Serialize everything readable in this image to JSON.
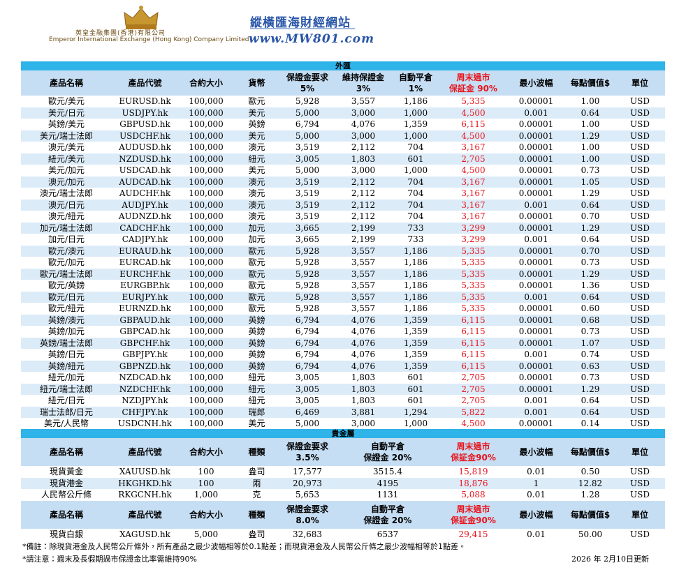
{
  "header": {
    "company_zh": "英皇金融集團(香港)有限公司",
    "company_en": "Emperor International Exchange (Hong Kong) Company Limited",
    "site_name": "縱橫匯海財經網站",
    "site_url": "www.MW801.com"
  },
  "forex": {
    "section_title": "外匯",
    "columns": [
      [
        "產品名稱"
      ],
      [
        "產品代號"
      ],
      [
        "合約大小"
      ],
      [
        "貨幣"
      ],
      [
        "保證金要求",
        "5%"
      ],
      [
        "維持保證金",
        "3%"
      ],
      [
        "自動平倉",
        "1%"
      ],
      [
        "周末過市",
        "保証金 90%"
      ],
      [
        "最小波幅"
      ],
      [
        "每點價值$"
      ],
      [
        "單位"
      ]
    ],
    "rows": [
      [
        "歐元/美元",
        "EURUSD.hk",
        "100,000",
        "歐元",
        "5,928",
        "3,557",
        "1,186",
        "5,335",
        "0.00001",
        "1.00",
        "USD"
      ],
      [
        "美元/日元",
        "USDJPY.hk",
        "100,000",
        "美元",
        "5,000",
        "3,000",
        "1,000",
        "4,500",
        "0.001",
        "0.64",
        "USD"
      ],
      [
        "英鎊/美元",
        "GBPUSD.hk",
        "100,000",
        "英鎊",
        "6,794",
        "4,076",
        "1,359",
        "6,115",
        "0.00001",
        "1.00",
        "USD"
      ],
      [
        "美元/瑞士法郎",
        "USDCHF.hk",
        "100,000",
        "美元",
        "5,000",
        "3,000",
        "1,000",
        "4,500",
        "0.00001",
        "1.29",
        "USD"
      ],
      [
        "澳元/美元",
        "AUDUSD.hk",
        "100,000",
        "澳元",
        "3,519",
        "2,112",
        "704",
        "3,167",
        "0.00001",
        "1.00",
        "USD"
      ],
      [
        "紐元/美元",
        "NZDUSD.hk",
        "100,000",
        "紐元",
        "3,005",
        "1,803",
        "601",
        "2,705",
        "0.00001",
        "1.00",
        "USD"
      ],
      [
        "美元/加元",
        "USDCAD.hk",
        "100,000",
        "美元",
        "5,000",
        "3,000",
        "1,000",
        "4,500",
        "0.00001",
        "0.73",
        "USD"
      ],
      [
        "澳元/加元",
        "AUDCAD.hk",
        "100,000",
        "澳元",
        "3,519",
        "2,112",
        "704",
        "3,167",
        "0.00001",
        "1.05",
        "USD"
      ],
      [
        "澳元/瑞士法郎",
        "AUDCHF.hk",
        "100,000",
        "澳元",
        "3,519",
        "2,112",
        "704",
        "3,167",
        "0.00001",
        "1.29",
        "USD"
      ],
      [
        "澳元/日元",
        "AUDJPY.hk",
        "100,000",
        "澳元",
        "3,519",
        "2,112",
        "704",
        "3,167",
        "0.001",
        "0.64",
        "USD"
      ],
      [
        "澳元/紐元",
        "AUDNZD.hk",
        "100,000",
        "澳元",
        "3,519",
        "2,112",
        "704",
        "3,167",
        "0.00001",
        "0.70",
        "USD"
      ],
      [
        "加元/瑞士法郎",
        "CADCHF.hk",
        "100,000",
        "加元",
        "3,665",
        "2,199",
        "733",
        "3,299",
        "0.00001",
        "1.29",
        "USD"
      ],
      [
        "加元/日元",
        "CADJPY.hk",
        "100,000",
        "加元",
        "3,665",
        "2,199",
        "733",
        "3,299",
        "0.001",
        "0.64",
        "USD"
      ],
      [
        "歐元/澳元",
        "EURAUD.hk",
        "100,000",
        "歐元",
        "5,928",
        "3,557",
        "1,186",
        "5,335",
        "0.00001",
        "0.70",
        "USD"
      ],
      [
        "歐元/加元",
        "EURCAD.hk",
        "100,000",
        "歐元",
        "5,928",
        "3,557",
        "1,186",
        "5,335",
        "0.00001",
        "0.73",
        "USD"
      ],
      [
        "歐元/瑞士法郎",
        "EURCHF.hk",
        "100,000",
        "歐元",
        "5,928",
        "3,557",
        "1,186",
        "5,335",
        "0.00001",
        "1.29",
        "USD"
      ],
      [
        "歐元/英鎊",
        "EURGBP.hk",
        "100,000",
        "歐元",
        "5,928",
        "3,557",
        "1,186",
        "5,335",
        "0.00001",
        "1.36",
        "USD"
      ],
      [
        "歐元/日元",
        "EURJPY.hk",
        "100,000",
        "歐元",
        "5,928",
        "3,557",
        "1,186",
        "5,335",
        "0.001",
        "0.64",
        "USD"
      ],
      [
        "歐元/紐元",
        "EURNZD.hk",
        "100,000",
        "歐元",
        "5,928",
        "3,557",
        "1,186",
        "5,335",
        "0.00001",
        "0.60",
        "USD"
      ],
      [
        "英鎊/澳元",
        "GBPAUD.hk",
        "100,000",
        "英鎊",
        "6,794",
        "4,076",
        "1,359",
        "6,115",
        "0.00001",
        "0.68",
        "USD"
      ],
      [
        "英鎊/加元",
        "GBPCAD.hk",
        "100,000",
        "英鎊",
        "6,794",
        "4,076",
        "1,359",
        "6,115",
        "0.00001",
        "0.73",
        "USD"
      ],
      [
        "英鎊/瑞士法郎",
        "GBPCHF.hk",
        "100,000",
        "英鎊",
        "6,794",
        "4,076",
        "1,359",
        "6,115",
        "0.00001",
        "1.07",
        "USD"
      ],
      [
        "英鎊/日元",
        "GBPJPY.hk",
        "100,000",
        "英鎊",
        "6,794",
        "4,076",
        "1,359",
        "6,115",
        "0.001",
        "0.74",
        "USD"
      ],
      [
        "英鎊/紐元",
        "GBPNZD.hk",
        "100,000",
        "英鎊",
        "6,794",
        "4,076",
        "1,359",
        "6,115",
        "0.00001",
        "0.63",
        "USD"
      ],
      [
        "紐元/加元",
        "NZDCAD.hk",
        "100,000",
        "紐元",
        "3,005",
        "1,803",
        "601",
        "2,705",
        "0.00001",
        "0.73",
        "USD"
      ],
      [
        "紐元/瑞士法郎",
        "NZDCHF.hk",
        "100,000",
        "紐元",
        "3,005",
        "1,803",
        "601",
        "2,705",
        "0.00001",
        "1.29",
        "USD"
      ],
      [
        "紐元/日元",
        "NZDJPY.hk",
        "100,000",
        "紐元",
        "3,005",
        "1,803",
        "601",
        "2,705",
        "0.001",
        "0.64",
        "USD"
      ],
      [
        "瑞士法郎/日元",
        "CHFJPY.hk",
        "100,000",
        "瑞郎",
        "6,469",
        "3,881",
        "1,294",
        "5,822",
        "0.001",
        "0.64",
        "USD"
      ],
      [
        "美元/人民幣",
        "USDCNH.hk",
        "100,000",
        "美元",
        "5,000",
        "3,000",
        "1,000",
        "4,500",
        "0.00001",
        "0.14",
        "USD"
      ]
    ]
  },
  "metals": {
    "section_title": "貴金屬",
    "columns": [
      [
        "產品名稱"
      ],
      [
        "產品代號"
      ],
      [
        "合約大小"
      ],
      [
        "種類"
      ],
      [
        "保證金要求",
        "3.5%"
      ],
      [
        "自動平倉",
        "保證金 20%"
      ],
      [
        "周末過市",
        "保証金90%"
      ],
      [
        "最小波幅"
      ],
      [
        "每點價值$"
      ],
      [
        "單位"
      ]
    ],
    "rows": [
      [
        "現貨黃金",
        "XAUUSD.hk",
        "100",
        "盎司",
        "17,577",
        "3515.4",
        "15,819",
        "0.01",
        "0.50",
        "USD"
      ],
      [
        "現貨港金",
        "HKGHKD.hk",
        "100",
        "兩",
        "20,973",
        "4195",
        "18,876",
        "1",
        "12.82",
        "USD"
      ],
      [
        "人民幣公斤條",
        "RKGCNH.hk",
        "1,000",
        "克",
        "5,653",
        "1131",
        "5,088",
        "0.01",
        "1.28",
        "USD"
      ]
    ],
    "columns_2": [
      [
        "產品名稱"
      ],
      [
        "產品代號"
      ],
      [
        "合約大小"
      ],
      [
        "種類"
      ],
      [
        "保證金要求",
        "8.0%"
      ],
      [
        "自動平倉",
        "保證金 20%"
      ],
      [
        "周末過市",
        "保証金90%"
      ],
      [
        "最小波幅"
      ],
      [
        "每點價值$"
      ],
      [
        "單位"
      ]
    ],
    "rows_2": [
      [
        "現貨白銀",
        "XAGUSD.hk",
        "5,000",
        "盎司",
        "32,683",
        "6537",
        "29,415",
        "0.01",
        "50.00",
        "USD"
      ]
    ]
  },
  "notes": [
    "*備註：除現貨港金及人民幣公斤條外，所有產品之最少波幅相等於0.1點差；而現貨港金及人民幣公斤條之最少波幅相等於1點差。",
    "*請注意：週末及長假期過市保證金比率需維持90%"
  ],
  "updated": "2026 年 2月10日更新"
}
